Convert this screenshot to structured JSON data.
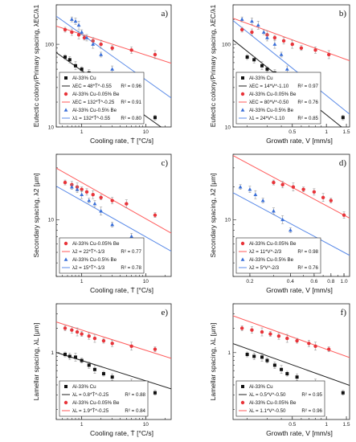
{
  "colors": {
    "black": "#111111",
    "red": "#e8343a",
    "blue": "#3a6fd8",
    "red_fit": "#ff5a5a",
    "blue_fit": "#5b8be8",
    "black_fit": "#222222"
  },
  "chart_data": [
    {
      "panel": "a)",
      "type": "scatter",
      "xlabel": "Cooling rate, Ṫ [°C/s]",
      "ylabel": "Eutectic colony/Primary spacing, λEC/λ1",
      "xscale": "log",
      "yscale": "log",
      "xlim": [
        0.4,
        25
      ],
      "ylim": [
        10,
        300
      ],
      "xticks": [
        {
          "v": 1,
          "t": "1"
        },
        {
          "v": 10,
          "t": "10"
        }
      ],
      "yticks": [
        {
          "v": 10,
          "t": "10"
        },
        {
          "v": 100,
          "t": "100"
        }
      ],
      "legend": "bottom-left",
      "series": [
        {
          "name": "Al-33% Cu",
          "color": "black",
          "marker": "square",
          "x": [
            0.55,
            0.65,
            0.8,
            1.0,
            1.3,
            1.6,
            2.2,
            3.0,
            6.0,
            14.0
          ],
          "y": [
            70,
            65,
            55,
            50,
            45,
            35,
            30,
            22,
            15,
            13
          ]
        },
        {
          "name": "Al-33% Cu-0.05% Be",
          "color": "red",
          "marker": "circle",
          "x": [
            0.55,
            0.7,
            0.9,
            1.1,
            1.5,
            2.0,
            3.0,
            6.0,
            14.0
          ],
          "y": [
            150,
            140,
            130,
            120,
            110,
            100,
            90,
            85,
            75
          ]
        },
        {
          "name": "Al-33% Cu-0.5% Be",
          "color": "blue",
          "marker": "triangle",
          "x": [
            0.7,
            0.8,
            0.9,
            1.0,
            1.2,
            1.5,
            2.0,
            3.0,
            6.0
          ],
          "y": [
            200,
            190,
            170,
            140,
            120,
            100,
            75,
            50,
            35
          ]
        }
      ],
      "fits": [
        {
          "color": "black_fit",
          "a": 48,
          "b": -0.55,
          "label": "λEC = 48*Ṫ^-0.55",
          "r2": "R² = 0.96"
        },
        {
          "color": "red_fit",
          "a": 132,
          "b": -0.25,
          "label": "λEC = 132*Ṫ^-0.25",
          "r2": "R² = 0.91"
        },
        {
          "color": "blue_fit",
          "a": 132,
          "b": -0.55,
          "label": "λ1 = 132*Ṫ^-0.55",
          "r2": "R² = 0.80"
        }
      ]
    },
    {
      "panel": "b)",
      "type": "scatter",
      "xlabel": "Growth rate, V [mm/s]",
      "ylabel": "Eutectic colony/Primary spacing, λEC/λ1",
      "xscale": "log",
      "yscale": "log",
      "xlim": [
        0.15,
        1.6
      ],
      "ylim": [
        10,
        300
      ],
      "xticks": [
        {
          "v": 0.5,
          "t": "0.5"
        },
        {
          "v": 1,
          "t": "1"
        },
        {
          "v": 1.5,
          "t": "1.5"
        }
      ],
      "yticks": [
        {
          "v": 10,
          "t": "10"
        },
        {
          "v": 100,
          "t": "100"
        }
      ],
      "legend": "bottom-left",
      "series": [
        {
          "name": "Al-33% Cu",
          "color": "black",
          "marker": "square",
          "x": [
            0.2,
            0.23,
            0.27,
            0.3,
            0.35,
            0.4,
            0.45,
            0.55,
            0.8,
            1.4
          ],
          "y": [
            70,
            65,
            55,
            50,
            45,
            35,
            30,
            22,
            15,
            13
          ]
        },
        {
          "name": "Al-33% Cu-0.05% Be",
          "color": "red",
          "marker": "circle",
          "x": [
            0.18,
            0.22,
            0.3,
            0.35,
            0.42,
            0.5,
            0.6,
            0.8,
            1.05
          ],
          "y": [
            150,
            140,
            130,
            120,
            110,
            100,
            90,
            85,
            75
          ]
        },
        {
          "name": "Al-33% Cu-0.5% Be",
          "color": "blue",
          "marker": "triangle",
          "x": [
            0.18,
            0.22,
            0.25,
            0.28,
            0.3,
            0.35,
            0.4,
            0.45,
            0.55
          ],
          "y": [
            200,
            190,
            170,
            140,
            120,
            100,
            75,
            50,
            35
          ]
        }
      ],
      "fits": [
        {
          "color": "black_fit",
          "a": 14,
          "b": -1.1,
          "label": "λEC = 14*V^-1.10",
          "r2": "R² = 0.97"
        },
        {
          "color": "red_fit",
          "a": 80,
          "b": -0.5,
          "label": "λEC = 80*V^-0.50",
          "r2": "R² = 0.76"
        },
        {
          "color": "blue_fit",
          "a": 24,
          "b": -1.1,
          "label": "λ1 = 24*V^-1.10",
          "r2": "R² = 0.85"
        }
      ]
    },
    {
      "panel": "c)",
      "type": "scatter",
      "xlabel": "Cooling rate, Ṫ [°C/s]",
      "ylabel": "Secondary spacing, λ2 [μm]",
      "xscale": "log",
      "yscale": "log",
      "xlim": [
        0.4,
        25
      ],
      "ylim": [
        3,
        40
      ],
      "xticks": [
        {
          "v": 1,
          "t": "1"
        },
        {
          "v": 10,
          "t": "10"
        }
      ],
      "yticks": [
        {
          "v": 10,
          "t": "10"
        }
      ],
      "legend": "bottom-left",
      "series": [
        {
          "name": "Al-33% Cu-0.05% Be",
          "color": "red",
          "marker": "circle",
          "x": [
            0.55,
            0.7,
            0.85,
            1.0,
            1.2,
            1.5,
            2.0,
            3.0,
            5.0,
            14.0
          ],
          "y": [
            22,
            21,
            20,
            19,
            18,
            17,
            16,
            15,
            14,
            11
          ]
        },
        {
          "name": "Al-33% Cu-0.5% Be",
          "color": "blue",
          "marker": "triangle",
          "x": [
            0.7,
            0.85,
            1.0,
            1.3,
            1.6,
            2.0,
            3.0,
            6.0
          ],
          "y": [
            20,
            19,
            17,
            15,
            14,
            12,
            9,
            7
          ]
        }
      ],
      "fits": [
        {
          "color": "red_fit",
          "a": 22,
          "b": -0.3333,
          "label": "λ2 = 22*Ṫ^-1/3",
          "r2": "R² = 0.77"
        },
        {
          "color": "blue_fit",
          "a": 15,
          "b": -0.3333,
          "label": "λ2 = 15*Ṫ^-1/3",
          "r2": "R² = 0.78"
        }
      ]
    },
    {
      "panel": "d)",
      "type": "scatter",
      "xlabel": "Growth rate, V [mm/s]",
      "ylabel": "Secondary spacing, λ2 [μm]",
      "xscale": "log",
      "yscale": "log",
      "xlim": [
        0.15,
        1.1
      ],
      "ylim": [
        3,
        40
      ],
      "xticks": [
        {
          "v": 0.2,
          "t": "0.2"
        },
        {
          "v": 0.4,
          "t": "0.4"
        },
        {
          "v": 0.6,
          "t": "0.6"
        },
        {
          "v": 0.8,
          "t": "0.8"
        },
        {
          "v": 1.0,
          "t": "1.0"
        }
      ],
      "yticks": [
        {
          "v": 10,
          "t": "10"
        }
      ],
      "legend": "bottom-left",
      "series": [
        {
          "name": "Al-33% Cu-0.05% Be",
          "color": "red",
          "marker": "circle",
          "x": [
            0.3,
            0.35,
            0.42,
            0.5,
            0.6,
            0.7,
            0.8,
            1.0
          ],
          "y": [
            22,
            21,
            20,
            19,
            18,
            16,
            15,
            11
          ]
        },
        {
          "name": "Al-33% Cu-0.5% Be",
          "color": "blue",
          "marker": "triangle",
          "x": [
            0.17,
            0.2,
            0.22,
            0.25,
            0.3,
            0.35,
            0.4,
            0.55
          ],
          "y": [
            20,
            19,
            17,
            15,
            12,
            10,
            8,
            6
          ]
        }
      ],
      "fits": [
        {
          "color": "red_fit",
          "a": 11,
          "b": -0.6667,
          "label": "λ2 = 11*V^-2/3",
          "r2": "R² = 0.98"
        },
        {
          "color": "blue_fit",
          "a": 5,
          "b": -0.6667,
          "label": "λ2 = 5*V^-2/3",
          "r2": "R² = 0.76"
        }
      ]
    },
    {
      "panel": "e)",
      "type": "scatter",
      "xlabel": "Cooling rate, Ṫ [°C/s]",
      "ylabel": "Lamellar spacing, λL [μm]",
      "xscale": "log",
      "yscale": "log",
      "xlim": [
        0.4,
        25
      ],
      "ylim": [
        0.15,
        4
      ],
      "xticks": [
        {
          "v": 1,
          "t": "1"
        },
        {
          "v": 10,
          "t": "10"
        }
      ],
      "yticks": [
        {
          "v": 1,
          "t": "1"
        }
      ],
      "legend": "bottom-left",
      "series": [
        {
          "name": "Al-33% Cu",
          "color": "black",
          "marker": "square",
          "x": [
            0.55,
            0.65,
            0.8,
            1.0,
            1.3,
            1.6,
            2.2,
            3.0,
            6.0,
            14.0
          ],
          "y": [
            0.95,
            0.9,
            0.88,
            0.8,
            0.7,
            0.62,
            0.55,
            0.5,
            0.42,
            0.32
          ]
        },
        {
          "name": "Al-33% Cu-0.05% Be",
          "color": "red",
          "marker": "circle",
          "x": [
            0.55,
            0.7,
            0.85,
            1.0,
            1.3,
            1.6,
            2.2,
            3.0,
            6.0,
            14.0
          ],
          "y": [
            2.0,
            1.9,
            1.8,
            1.7,
            1.6,
            1.5,
            1.4,
            1.3,
            1.2,
            1.1
          ]
        }
      ],
      "fits": [
        {
          "color": "black_fit",
          "a": 0.8,
          "b": -0.25,
          "label": "λL = 0.8*Ṫ^-0.25",
          "r2": "R² = 0.88"
        },
        {
          "color": "red_fit",
          "a": 1.9,
          "b": -0.25,
          "label": "λL = 1.9*Ṫ^-0.25",
          "r2": "R² = 0.84"
        }
      ]
    },
    {
      "panel": "f)",
      "type": "scatter",
      "xlabel": "Growth rate, V [mm/s]",
      "ylabel": "Lamellar spacing, λL [μm]",
      "xscale": "log",
      "yscale": "log",
      "xlim": [
        0.15,
        1.6
      ],
      "ylim": [
        0.15,
        4
      ],
      "xticks": [
        {
          "v": 0.5,
          "t": "0.5"
        },
        {
          "v": 1,
          "t": "1"
        },
        {
          "v": 1.5,
          "t": "1.5"
        }
      ],
      "yticks": [
        {
          "v": 1,
          "t": "1"
        }
      ],
      "legend": "bottom-left",
      "series": [
        {
          "name": "Al-33% Cu",
          "color": "black",
          "marker": "square",
          "x": [
            0.2,
            0.23,
            0.27,
            0.3,
            0.35,
            0.4,
            0.45,
            0.55,
            0.8,
            1.4
          ],
          "y": [
            0.95,
            0.9,
            0.88,
            0.8,
            0.7,
            0.62,
            0.55,
            0.5,
            0.42,
            0.32
          ]
        },
        {
          "name": "Al-33% Cu-0.05% Be",
          "color": "red",
          "marker": "circle",
          "x": [
            0.18,
            0.22,
            0.27,
            0.32,
            0.38,
            0.45,
            0.55,
            0.7,
            0.8,
            1.05
          ],
          "y": [
            2.0,
            1.9,
            1.8,
            1.7,
            1.6,
            1.5,
            1.4,
            1.3,
            1.2,
            1.1
          ]
        }
      ],
      "fits": [
        {
          "color": "black_fit",
          "a": 0.5,
          "b": -0.5,
          "label": "λL = 0.5*V^-0.50",
          "r2": "R² = 0.95"
        },
        {
          "color": "red_fit",
          "a": 1.1,
          "b": -0.5,
          "label": "λL = 1.1*V^-0.50",
          "r2": "R² = 0.96"
        }
      ]
    }
  ]
}
